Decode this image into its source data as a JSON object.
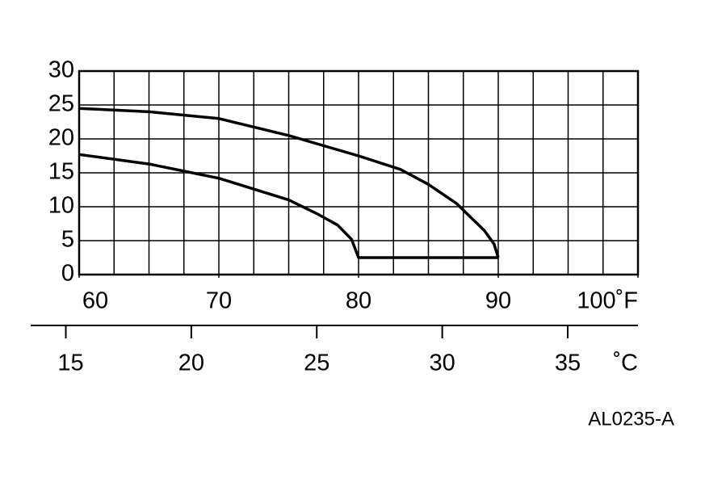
{
  "chart_data": {
    "type": "line",
    "xlim": [
      60,
      100
    ],
    "xticks": [
      60,
      70,
      80,
      90,
      {
        "value": 100,
        "label": "100˚F"
      }
    ],
    "x_grid_step": 2.5,
    "ylim": [
      0,
      30
    ],
    "yticks": [
      0,
      5,
      10,
      15,
      20,
      25,
      30
    ],
    "x2lim": [
      13.6,
      37.8
    ],
    "x2ticks": [
      15,
      20,
      25,
      30,
      35
    ],
    "x2label": "˚C",
    "grid": true,
    "series": [
      {
        "color": "#000000",
        "x": [
          60,
          65,
          70,
          75,
          80,
          83,
          85,
          87,
          88,
          89,
          89.7,
          90
        ],
        "values": [
          24.5,
          24,
          23,
          20.5,
          17.5,
          15.5,
          13.3,
          10.5,
          8.5,
          6.5,
          4.5,
          2.5
        ]
      },
      {
        "color": "#000000",
        "x": [
          60,
          65,
          70,
          75,
          77,
          78.5,
          79.5,
          80,
          90
        ],
        "values": [
          17.7,
          16.3,
          14.2,
          11,
          9,
          7.3,
          5.2,
          2.5,
          2.5
        ]
      }
    ],
    "annotation": "AL0235-A"
  }
}
